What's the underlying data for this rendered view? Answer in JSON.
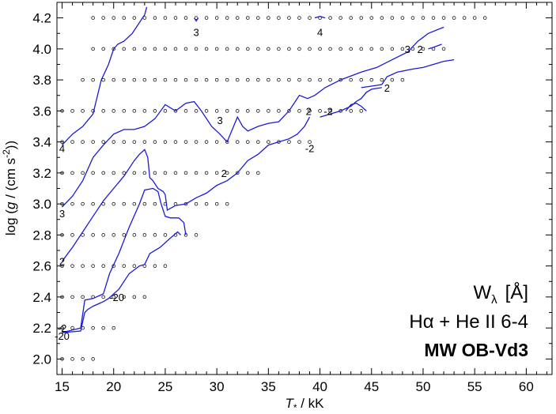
{
  "chart_data": {
    "type": "line",
    "xlabel": "T* / kK",
    "ylabel": "log (g / (cm s⁻²))",
    "xlim": [
      14.5,
      62.5
    ],
    "ylim": [
      1.9,
      4.3
    ],
    "xticks": [
      15,
      20,
      25,
      30,
      35,
      40,
      45,
      50,
      55,
      60
    ],
    "yticks": [
      2.0,
      2.2,
      2.4,
      2.6,
      2.8,
      3.0,
      3.2,
      3.4,
      3.6,
      3.8,
      4.0,
      4.2
    ],
    "xtick_labels": [
      "15",
      "20",
      "25",
      "30",
      "35",
      "40",
      "45",
      "50",
      "55",
      "60"
    ],
    "ytick_labels": [
      "2.0",
      "2.2",
      "2.4",
      "2.6",
      "2.8",
      "3.0",
      "3.2",
      "3.4",
      "3.6",
      "3.8",
      "4.0",
      "4.2"
    ],
    "grid": false,
    "annotation": {
      "quantity": "W",
      "subscript": "λ",
      "unit": "[Å]",
      "lines": "Hα + He II 6-4",
      "model": "MW OB-Vd3"
    },
    "grid_points": [
      {
        "logg": 4.2,
        "teff_min": 18,
        "teff_max": 56,
        "step": 1
      },
      {
        "logg": 4.0,
        "teff_min": 18,
        "teff_max": 52,
        "step": 1
      },
      {
        "logg": 3.8,
        "teff_min": 17,
        "teff_max": 48,
        "step": 1
      },
      {
        "logg": 3.6,
        "teff_min": 15,
        "teff_max": 44,
        "step": 1
      },
      {
        "logg": 3.4,
        "teff_min": 15,
        "teff_max": 39,
        "step": 1
      },
      {
        "logg": 3.2,
        "teff_min": 15,
        "teff_max": 34,
        "step": 1
      },
      {
        "logg": 3.0,
        "teff_min": 15,
        "teff_max": 31,
        "step": 1
      },
      {
        "logg": 2.8,
        "teff_min": 15,
        "teff_max": 28,
        "step": 1
      },
      {
        "logg": 2.6,
        "teff_min": 15,
        "teff_max": 25,
        "step": 1
      },
      {
        "logg": 2.4,
        "teff_min": 15,
        "teff_max": 23,
        "step": 1
      },
      {
        "logg": 2.2,
        "teff_min": 15,
        "teff_max": 20,
        "step": 1
      },
      {
        "logg": 2.0,
        "teff_min": 15,
        "teff_max": 18,
        "step": 1
      }
    ],
    "series": [
      {
        "label": "4",
        "color": "#1a1adb",
        "points": [
          [
            15,
            3.38
          ],
          [
            16,
            3.45
          ],
          [
            17,
            3.5
          ],
          [
            18,
            3.58
          ],
          [
            18.8,
            3.8
          ],
          [
            19.5,
            3.9
          ],
          [
            20,
            4.0
          ],
          [
            20.4,
            4.03
          ],
          [
            21,
            4.05
          ],
          [
            21.8,
            4.1
          ],
          [
            22.4,
            4.16
          ],
          [
            22.8,
            4.2
          ],
          [
            23,
            4.22
          ],
          [
            23.2,
            4.27
          ]
        ]
      },
      {
        "label": "3",
        "color": "#1a1adb",
        "points": [
          [
            15,
            2.98
          ],
          [
            16,
            3.05
          ],
          [
            17,
            3.15
          ],
          [
            18,
            3.3
          ],
          [
            19,
            3.38
          ],
          [
            20,
            3.45
          ],
          [
            21,
            3.48
          ],
          [
            22,
            3.48
          ],
          [
            23,
            3.5
          ],
          [
            24,
            3.55
          ],
          [
            25,
            3.64
          ],
          [
            26,
            3.6
          ],
          [
            27,
            3.65
          ],
          [
            27.8,
            3.66
          ],
          [
            28.5,
            3.6
          ],
          [
            29.5,
            3.5
          ],
          [
            30.3,
            3.45
          ],
          [
            31,
            3.4
          ],
          [
            31.5,
            3.48
          ],
          [
            32,
            3.56
          ],
          [
            32.5,
            3.5
          ],
          [
            33,
            3.47
          ],
          [
            34,
            3.5
          ],
          [
            35,
            3.52
          ],
          [
            36,
            3.53
          ],
          [
            37,
            3.6
          ],
          [
            38,
            3.7
          ],
          [
            38.8,
            3.68
          ],
          [
            39.5,
            3.7
          ],
          [
            40.5,
            3.75
          ],
          [
            42,
            3.8
          ],
          [
            44,
            3.85
          ],
          [
            45.5,
            3.88
          ],
          [
            47,
            3.93
          ],
          [
            48.5,
            3.98
          ],
          [
            49.5,
            4.05
          ],
          [
            50.5,
            4.1
          ],
          [
            52,
            4.14
          ]
        ]
      },
      {
        "label": "2",
        "color": "#1a1adb",
        "points": [
          [
            15,
            2.63
          ],
          [
            16,
            2.72
          ],
          [
            17,
            2.82
          ],
          [
            18,
            2.92
          ],
          [
            19,
            3.02
          ],
          [
            20,
            3.1
          ],
          [
            21,
            3.18
          ],
          [
            22,
            3.28
          ],
          [
            22.5,
            3.32
          ],
          [
            23,
            3.35
          ],
          [
            23.3,
            3.3
          ],
          [
            23.5,
            3.17
          ],
          [
            23.8,
            3.15
          ],
          [
            24.3,
            3.1
          ],
          [
            24.8,
            3.08
          ],
          [
            25,
            3.06
          ],
          [
            25.2,
            2.96
          ],
          [
            26,
            2.99
          ],
          [
            27,
            3.0
          ],
          [
            28,
            3.04
          ],
          [
            29,
            3.07
          ],
          [
            30,
            3.12
          ],
          [
            31,
            3.15
          ],
          [
            32,
            3.2
          ],
          [
            33,
            3.28
          ],
          [
            34,
            3.32
          ],
          [
            35,
            3.38
          ],
          [
            36,
            3.4
          ],
          [
            37,
            3.42
          ],
          [
            37.8,
            3.45
          ],
          [
            38.5,
            3.5
          ],
          [
            39,
            3.56
          ]
        ]
      },
      {
        "label": "-2",
        "color": "#1a1adb",
        "points": [
          [
            15,
            2.17
          ],
          [
            16.8,
            2.2
          ],
          [
            17.2,
            2.38
          ],
          [
            18,
            2.39
          ],
          [
            19,
            2.42
          ],
          [
            19.6,
            2.55
          ],
          [
            20.5,
            2.68
          ],
          [
            21.5,
            2.85
          ],
          [
            22.5,
            3.0
          ],
          [
            23,
            3.09
          ],
          [
            23.8,
            3.1
          ],
          [
            24.3,
            3.08
          ],
          [
            24.6,
            3.0
          ],
          [
            25,
            2.92
          ],
          [
            25.5,
            2.91
          ],
          [
            26.3,
            2.91
          ],
          [
            26.8,
            2.88
          ],
          [
            27,
            2.8
          ]
        ]
      },
      {
        "label": "-20",
        "color": "#1a1adb",
        "points": [
          [
            15,
            2.17
          ],
          [
            16.8,
            2.18
          ],
          [
            17.2,
            2.3
          ],
          [
            17.5,
            2.32
          ],
          [
            18,
            2.34
          ],
          [
            19,
            2.37
          ],
          [
            19.5,
            2.39
          ],
          [
            20.5,
            2.45
          ],
          [
            21.5,
            2.55
          ],
          [
            22.5,
            2.6
          ],
          [
            23,
            2.61
          ],
          [
            23.5,
            2.68
          ],
          [
            24.5,
            2.72
          ],
          [
            25.5,
            2.78
          ],
          [
            26.2,
            2.82
          ],
          [
            26.5,
            2.8
          ]
        ]
      },
      {
        "label": "",
        "color": "#1a1adb",
        "points": [
          [
            44,
            3.75
          ],
          [
            45,
            3.76
          ],
          [
            46,
            3.77
          ],
          [
            46.5,
            3.82
          ],
          [
            47.5,
            3.85
          ],
          [
            49,
            3.87
          ],
          [
            50,
            3.88
          ],
          [
            51,
            3.9
          ],
          [
            52,
            3.92
          ],
          [
            53,
            3.93
          ]
        ]
      },
      {
        "label": "",
        "color": "#1a1adb",
        "points": [
          [
            40,
            3.56
          ],
          [
            41,
            3.58
          ],
          [
            42,
            3.6
          ],
          [
            43,
            3.63
          ],
          [
            43.5,
            3.66
          ],
          [
            44,
            3.68
          ],
          [
            44.5,
            3.72
          ],
          [
            45,
            3.74
          ],
          [
            46,
            3.75
          ]
        ]
      },
      {
        "label": "",
        "color": "#1a1adb",
        "points": [
          [
            42.5,
            3.6
          ],
          [
            43,
            3.64
          ],
          [
            43.5,
            3.65
          ],
          [
            44,
            3.63
          ],
          [
            44.5,
            3.6
          ]
        ]
      },
      {
        "label": "",
        "color": "#1a1adb",
        "points": [
          [
            50.5,
            4.0
          ],
          [
            51,
            4.01
          ],
          [
            51.8,
            4.03
          ]
        ]
      },
      {
        "label": "",
        "color": "#1a1adb",
        "points": [
          [
            27.8,
            4.2
          ],
          [
            28,
            4.18
          ],
          [
            28.2,
            4.2
          ]
        ]
      },
      {
        "label": "",
        "color": "#1a1adb",
        "points": [
          [
            39.5,
            4.2
          ],
          [
            40,
            4.21
          ],
          [
            40.5,
            4.2
          ]
        ]
      }
    ],
    "contour_labels": [
      {
        "text": "3",
        "x": 28,
        "y": 4.11
      },
      {
        "text": "4",
        "x": 40,
        "y": 4.11
      },
      {
        "text": "3",
        "x": 48.5,
        "y": 4.0
      },
      {
        "text": "2",
        "x": 49.7,
        "y": 4.0
      },
      {
        "text": "2",
        "x": 46.5,
        "y": 3.75
      },
      {
        "text": "3",
        "x": 30.3,
        "y": 3.54
      },
      {
        "text": "2",
        "x": 38.9,
        "y": 3.6
      },
      {
        "text": "-2",
        "x": 40.8,
        "y": 3.6
      },
      {
        "text": "-2",
        "x": 39,
        "y": 3.36
      },
      {
        "text": "4",
        "x": 15,
        "y": 3.36
      },
      {
        "text": "2",
        "x": 30.7,
        "y": 3.2
      },
      {
        "text": "3",
        "x": 15,
        "y": 2.94
      },
      {
        "text": "2",
        "x": 15,
        "y": 2.63
      },
      {
        "text": "-20",
        "x": 20.3,
        "y": 2.4
      },
      {
        "text": "-2",
        "x": 15,
        "y": 2.2
      },
      {
        "text": "-20",
        "x": 15,
        "y": 2.15
      }
    ]
  }
}
